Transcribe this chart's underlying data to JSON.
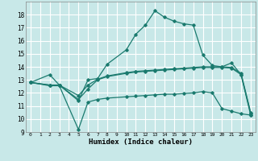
{
  "xlabel": "Humidex (Indice chaleur)",
  "bg_color": "#c8e8e8",
  "grid_color": "#ffffff",
  "line_color": "#1a7a6e",
  "xlim": [
    -0.5,
    23.5
  ],
  "ylim": [
    9,
    19
  ],
  "xticks": [
    0,
    1,
    2,
    3,
    4,
    5,
    6,
    7,
    8,
    9,
    10,
    11,
    12,
    13,
    14,
    15,
    16,
    17,
    18,
    19,
    20,
    21,
    22,
    23
  ],
  "yticks": [
    9,
    10,
    11,
    12,
    13,
    14,
    15,
    16,
    17,
    18
  ],
  "curve1_x": [
    0,
    2,
    3,
    5,
    6,
    7,
    8,
    10,
    11,
    12,
    13,
    14,
    15,
    16,
    17,
    18,
    19,
    20,
    21,
    22,
    23
  ],
  "curve1_y": [
    12.8,
    13.4,
    12.6,
    11.4,
    13.0,
    13.1,
    14.2,
    15.3,
    16.5,
    17.2,
    18.3,
    17.8,
    17.5,
    17.3,
    17.2,
    14.9,
    14.1,
    14.0,
    14.3,
    13.4,
    10.3
  ],
  "curve2_x": [
    0,
    2,
    3,
    5,
    6,
    7,
    8,
    10,
    11,
    12,
    13,
    14,
    15,
    16,
    17,
    18,
    19,
    20,
    21,
    22,
    23
  ],
  "curve2_y": [
    12.8,
    12.6,
    12.6,
    11.8,
    12.6,
    13.05,
    13.3,
    13.55,
    13.65,
    13.7,
    13.75,
    13.8,
    13.85,
    13.9,
    13.95,
    14.0,
    14.0,
    14.0,
    13.95,
    13.5,
    10.5
  ],
  "curve3_x": [
    0,
    2,
    3,
    5,
    6,
    7,
    8,
    10,
    11,
    12,
    13,
    14,
    15,
    16,
    17,
    18,
    19,
    20,
    21,
    22,
    23
  ],
  "curve3_y": [
    12.8,
    12.55,
    12.55,
    9.2,
    11.3,
    11.5,
    11.6,
    11.7,
    11.75,
    11.8,
    11.85,
    11.9,
    11.9,
    11.95,
    12.0,
    12.1,
    12.0,
    10.8,
    10.6,
    10.4,
    10.3
  ],
  "curve4_x": [
    0,
    2,
    3,
    5,
    6,
    7,
    8,
    10,
    11,
    12,
    13,
    14,
    15,
    16,
    17,
    18,
    19,
    20,
    21,
    22,
    23
  ],
  "curve4_y": [
    12.8,
    12.6,
    12.6,
    11.5,
    12.3,
    13.0,
    13.25,
    13.5,
    13.6,
    13.65,
    13.7,
    13.75,
    13.8,
    13.85,
    13.9,
    13.95,
    13.95,
    13.95,
    13.9,
    13.4,
    10.45
  ]
}
